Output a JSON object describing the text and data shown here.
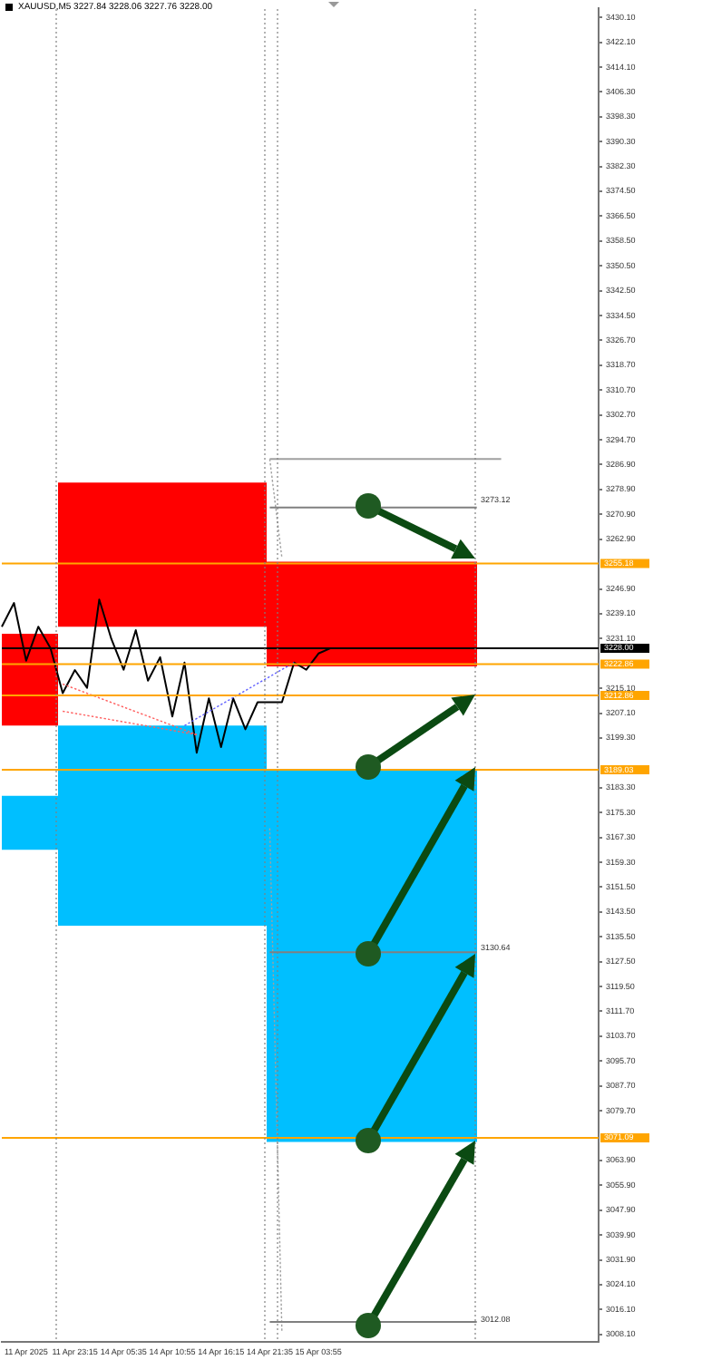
{
  "chart_data": {
    "type": "line",
    "title": "XAUUSD,M5  3227.84 3228.06 3227.76 3228.00",
    "categories": [
      null,
      null,
      "11 Apr 2025",
      null,
      null,
      null,
      "11 Apr 23:15",
      null,
      null,
      null,
      "14 Apr 05:35",
      null,
      null,
      null,
      "14 Apr 10:55",
      null,
      null,
      null,
      "14 Apr 16:15",
      null,
      null,
      null,
      "14 Apr 21:35",
      null,
      null,
      null,
      "15 Apr 03:55",
      null,
      null,
      null,
      null,
      null,
      null,
      null,
      null,
      null,
      null,
      null,
      null,
      null,
      null,
      null,
      null,
      null,
      null,
      null,
      null,
      null,
      null,
      null
    ],
    "ylim": [
      3005.7,
      3433.0
    ],
    "yticks": [
      {
        "value": 3430.1,
        "label": "3430.10"
      },
      {
        "value": 3422.1,
        "label": "3422.10"
      },
      {
        "value": 3414.1,
        "label": "3414.10"
      },
      {
        "value": 3406.3,
        "label": "3406.30"
      },
      {
        "value": 3398.3,
        "label": "3398.30"
      },
      {
        "value": 3390.3,
        "label": "3390.30"
      },
      {
        "value": 3382.3,
        "label": "3382.30"
      },
      {
        "value": 3374.5,
        "label": "3374.50"
      },
      {
        "value": 3366.5,
        "label": "3366.50"
      },
      {
        "value": 3358.5,
        "label": "3358.50"
      },
      {
        "value": 3350.5,
        "label": "3350.50"
      },
      {
        "value": 3342.5,
        "label": "3342.50"
      },
      {
        "value": 3334.5,
        "label": "3334.50"
      },
      {
        "value": 3326.7,
        "label": "3326.70"
      },
      {
        "value": 3318.7,
        "label": "3318.70"
      },
      {
        "value": 3310.7,
        "label": "3310.70"
      },
      {
        "value": 3302.7,
        "label": "3302.70"
      },
      {
        "value": 3294.7,
        "label": "3294.70"
      },
      {
        "value": 3286.9,
        "label": "3286.90"
      },
      {
        "value": 3278.9,
        "label": "3278.90"
      },
      {
        "value": 3270.9,
        "label": "3270.90"
      },
      {
        "value": 3262.9,
        "label": "3262.90"
      },
      {
        "value": 3246.9,
        "label": "3246.90"
      },
      {
        "value": 3239.1,
        "label": "3239.10"
      },
      {
        "value": 3231.1,
        "label": "3231.10"
      },
      {
        "value": 3215.1,
        "label": "3215.10"
      },
      {
        "value": 3207.1,
        "label": "3207.10"
      },
      {
        "value": 3199.3,
        "label": "3199.30"
      },
      {
        "value": 3183.3,
        "label": "3183.30"
      },
      {
        "value": 3175.3,
        "label": "3175.30"
      },
      {
        "value": 3167.3,
        "label": "3167.30"
      },
      {
        "value": 3159.3,
        "label": "3159.30"
      },
      {
        "value": 3151.5,
        "label": "3151.50"
      },
      {
        "value": 3143.5,
        "label": "3143.50"
      },
      {
        "value": 3135.5,
        "label": "3135.50"
      },
      {
        "value": 3127.5,
        "label": "3127.50"
      },
      {
        "value": 3119.5,
        "label": "3119.50"
      },
      {
        "value": 3111.7,
        "label": "3111.70"
      },
      {
        "value": 3103.7,
        "label": "3103.70"
      },
      {
        "value": 3095.7,
        "label": "3095.70"
      },
      {
        "value": 3087.7,
        "label": "3087.70"
      },
      {
        "value": 3079.7,
        "label": "3079.70"
      },
      {
        "value": 3063.9,
        "label": "3063.90"
      },
      {
        "value": 3055.9,
        "label": "3055.90"
      },
      {
        "value": 3047.9,
        "label": "3047.90"
      },
      {
        "value": 3039.9,
        "label": "3039.90"
      },
      {
        "value": 3031.9,
        "label": "3031.90"
      },
      {
        "value": 3024.1,
        "label": "3024.10"
      },
      {
        "value": 3016.1,
        "label": "3016.10"
      },
      {
        "value": 3008.1,
        "label": "3008.10"
      }
    ],
    "grid": false,
    "legend": false,
    "marker": "none",
    "series": [
      {
        "color": "#a0a0a0",
        "values": [
          null,
          null,
          null,
          null,
          null,
          null,
          null,
          null,
          null,
          null,
          null,
          null,
          null,
          null,
          null,
          null,
          null,
          null,
          null,
          null,
          null,
          null,
          3288.6,
          null,
          null,
          null,
          null,
          null,
          null,
          null,
          null,
          null,
          null,
          null,
          null,
          null,
          null,
          null,
          null,
          null,
          null,
          3288.6,
          null,
          null,
          null,
          null,
          null,
          null,
          null,
          null
        ]
      },
      {
        "color": "#808080",
        "values": [
          null,
          null,
          null,
          null,
          null,
          null,
          null,
          null,
          null,
          null,
          null,
          null,
          null,
          null,
          null,
          null,
          null,
          null,
          null,
          null,
          null,
          null,
          3273.1,
          null,
          null,
          null,
          null,
          null,
          null,
          null,
          null,
          null,
          null,
          null,
          null,
          null,
          null,
          null,
          null,
          3273.1,
          null,
          null,
          null,
          null,
          null,
          null,
          null,
          null,
          null,
          null
        ]
      },
      {
        "color": "#808080",
        "values": [
          null,
          null,
          null,
          null,
          null,
          null,
          null,
          null,
          null,
          null,
          null,
          null,
          null,
          null,
          null,
          null,
          null,
          null,
          null,
          null,
          null,
          null,
          3130.6,
          null,
          null,
          null,
          null,
          null,
          null,
          null,
          null,
          null,
          null,
          null,
          null,
          null,
          null,
          null,
          null,
          3130.6,
          null,
          null,
          null,
          null,
          null,
          null,
          null,
          null,
          null,
          null
        ]
      },
      {
        "color": "#808080",
        "values": [
          null,
          null,
          null,
          null,
          null,
          null,
          null,
          null,
          null,
          null,
          null,
          null,
          null,
          null,
          null,
          null,
          null,
          null,
          null,
          null,
          null,
          null,
          3012.1,
          null,
          null,
          null,
          null,
          null,
          null,
          null,
          null,
          null,
          null,
          null,
          null,
          null,
          null,
          null,
          null,
          3012.1,
          null,
          null,
          null,
          null,
          null,
          null,
          null,
          null,
          null,
          null
        ]
      },
      {
        "color": "#ff6060",
        "line_style": "dotted",
        "values": [
          null,
          null,
          null,
          null,
          null,
          3216.5,
          null,
          null,
          null,
          null,
          null,
          null,
          null,
          null,
          null,
          null,
          3200.3,
          null,
          null,
          null,
          null,
          null,
          null,
          null,
          null,
          null,
          null,
          null,
          null,
          null,
          null,
          null,
          null,
          null,
          null,
          null,
          null,
          null,
          null,
          null,
          null,
          null,
          null,
          null,
          null,
          null,
          null,
          null,
          null,
          null
        ]
      },
      {
        "color": "#ff6060",
        "line_style": "dotted",
        "values": [
          null,
          null,
          null,
          null,
          null,
          3207.8,
          null,
          null,
          null,
          null,
          null,
          null,
          null,
          null,
          null,
          null,
          3200.3,
          null,
          null,
          null,
          null,
          null,
          null,
          null,
          null,
          null,
          null,
          null,
          null,
          null,
          null,
          null,
          null,
          null,
          null,
          null,
          null,
          null,
          null,
          null,
          null,
          null,
          null,
          null,
          null,
          null,
          null,
          null,
          null,
          null
        ]
      },
      {
        "color": "#6060ff",
        "line_style": "dotted",
        "values": [
          null,
          null,
          null,
          null,
          null,
          null,
          null,
          null,
          null,
          null,
          null,
          null,
          null,
          null,
          null,
          3203.2,
          null,
          null,
          null,
          null,
          null,
          null,
          null,
          null,
          3223.4,
          null,
          null,
          null,
          null,
          null,
          null,
          null,
          null,
          null,
          null,
          null,
          null,
          null,
          null,
          null,
          null,
          null,
          null,
          null,
          null,
          null,
          null,
          null,
          null,
          null
        ]
      },
      {
        "color": "#a0a0a0",
        "line_style": "dotted",
        "values": [
          null,
          null,
          null,
          null,
          null,
          null,
          null,
          null,
          null,
          null,
          null,
          null,
          null,
          null,
          null,
          null,
          null,
          null,
          null,
          null,
          null,
          null,
          3288.6,
          3256.9,
          null,
          null,
          null,
          null,
          null,
          null,
          null,
          null,
          null,
          null,
          null,
          null,
          null,
          null,
          null,
          null,
          null,
          null,
          null,
          null,
          null,
          null,
          null,
          null,
          null,
          null
        ]
      },
      {
        "color": "#a0a0a0",
        "line_style": "dotted",
        "values": [
          null,
          null,
          null,
          null,
          null,
          null,
          null,
          null,
          null,
          null,
          null,
          null,
          null,
          null,
          null,
          null,
          null,
          null,
          null,
          null,
          null,
          null,
          3170.3,
          3008.6,
          null,
          null,
          null,
          null,
          null,
          null,
          null,
          null,
          null,
          null,
          null,
          null,
          null,
          null,
          null,
          null,
          null,
          null,
          null,
          null,
          null,
          null,
          null,
          null,
          null,
          null
        ]
      },
      {
        "color": "#000000",
        "values": [
          3234.9,
          3242.5,
          3224.0,
          3234.9,
          3228.0,
          3213.6,
          3221.0,
          3215.3,
          3243.6,
          3230.9,
          3221.1,
          3233.8,
          3217.6,
          3225.1,
          3206.1,
          3223.4,
          3194.5,
          3211.9,
          3196.3,
          3211.9,
          3202.0,
          3210.7,
          3210.7,
          3210.7,
          3223.4,
          3221.1,
          3226.3,
          3228.0,
          null,
          null,
          null,
          null,
          null,
          null,
          null,
          null,
          null,
          null,
          null,
          null,
          null,
          null,
          null,
          null,
          null,
          null,
          null,
          null,
          null,
          null
        ]
      }
    ],
    "ref_lines": [
      {
        "axis": "y",
        "value": 3255.18,
        "label": "3255.18",
        "color": "#ffa500"
      },
      {
        "axis": "y",
        "value": 3222.86,
        "label": "3222.86",
        "color": "#ffa500"
      },
      {
        "axis": "y",
        "value": 3212.86,
        "label": "3212.86",
        "color": "#ffa500"
      },
      {
        "axis": "y",
        "value": 3189.03,
        "label": "3189.03",
        "color": "#ffa500"
      },
      {
        "axis": "y",
        "value": 3071.09,
        "label": "3071.09",
        "color": "#ffa500"
      },
      {
        "axis": "y",
        "value": 3228.0,
        "label": "3228.00",
        "color": "#000000"
      }
    ],
    "bands": [
      {
        "axis": "y",
        "from": 3203.2,
        "to": 3232.6,
        "color": "#ff0000"
      },
      {
        "axis": "y",
        "from": 3163.4,
        "to": 3180.7,
        "color": "#00bfff"
      },
      {
        "axis": "y",
        "from": 3234.9,
        "to": 3281.1,
        "color": "#ff0000"
      },
      {
        "axis": "y",
        "from": 3139.1,
        "to": 3203.2,
        "color": "#00bfff"
      },
      {
        "axis": "y",
        "from": 3222.2,
        "to": 3255.7,
        "color": "#ff0000"
      },
      {
        "axis": "y",
        "from": 3069.8,
        "to": 3188.8,
        "color": "#00bfff"
      }
    ],
    "annotations": [
      "3273.12",
      "3130.64",
      "3012.08"
    ]
  }
}
